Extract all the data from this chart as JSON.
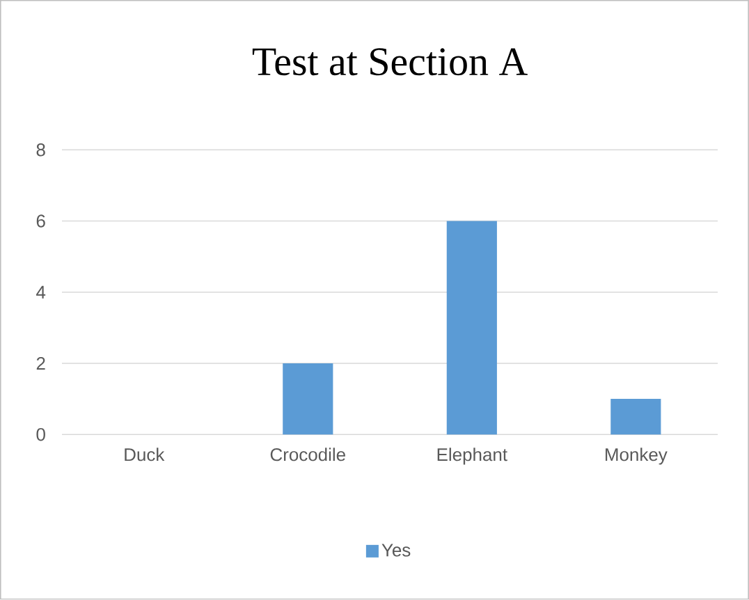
{
  "chart_data": {
    "type": "bar",
    "title": "Test at Section A",
    "categories": [
      "Duck",
      "Crocodile",
      "Elephant",
      "Monkey"
    ],
    "series": [
      {
        "name": "Yes",
        "color": "#5b9bd5",
        "values": [
          0,
          2,
          6,
          1
        ]
      }
    ],
    "ylim": [
      0,
      8
    ],
    "yticks": [
      0,
      2,
      4,
      6,
      8
    ],
    "grid": "y",
    "legend": "bottom"
  }
}
